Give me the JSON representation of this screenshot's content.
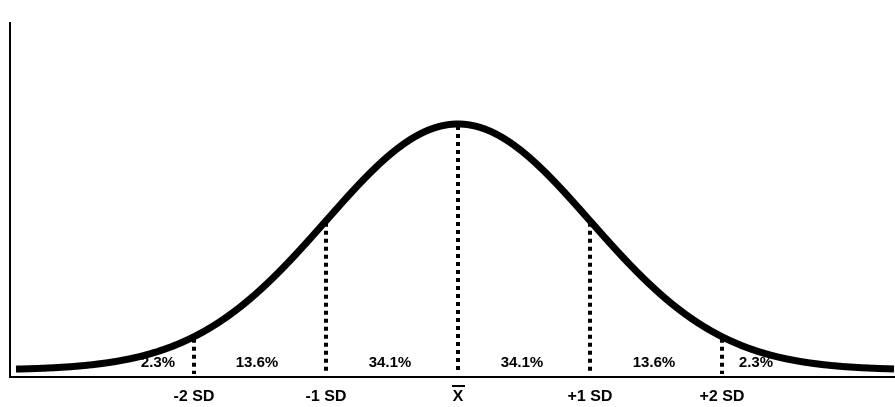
{
  "diagram": {
    "type": "normal-distribution-curve",
    "colors": {
      "curve": "#000000",
      "axis": "#000000",
      "divider": "#000000",
      "background": "#ffffff"
    },
    "axis_labels": {
      "minus_2sd": "-2 SD",
      "minus_1sd": "-1 SD",
      "mean": "X",
      "plus_1sd": "+1 SD",
      "plus_2sd": "+2 SD"
    },
    "mean_label_overbar": true,
    "region_labels": {
      "left_tail": "2.3%",
      "left_mid": "13.6%",
      "left_center": "34.1%",
      "right_center": "34.1%",
      "right_mid": "13.6%",
      "right_tail": "2.3%"
    },
    "divider_positions_sd": [
      -2,
      -1,
      0,
      1,
      2
    ],
    "divider_style": "dotted"
  }
}
